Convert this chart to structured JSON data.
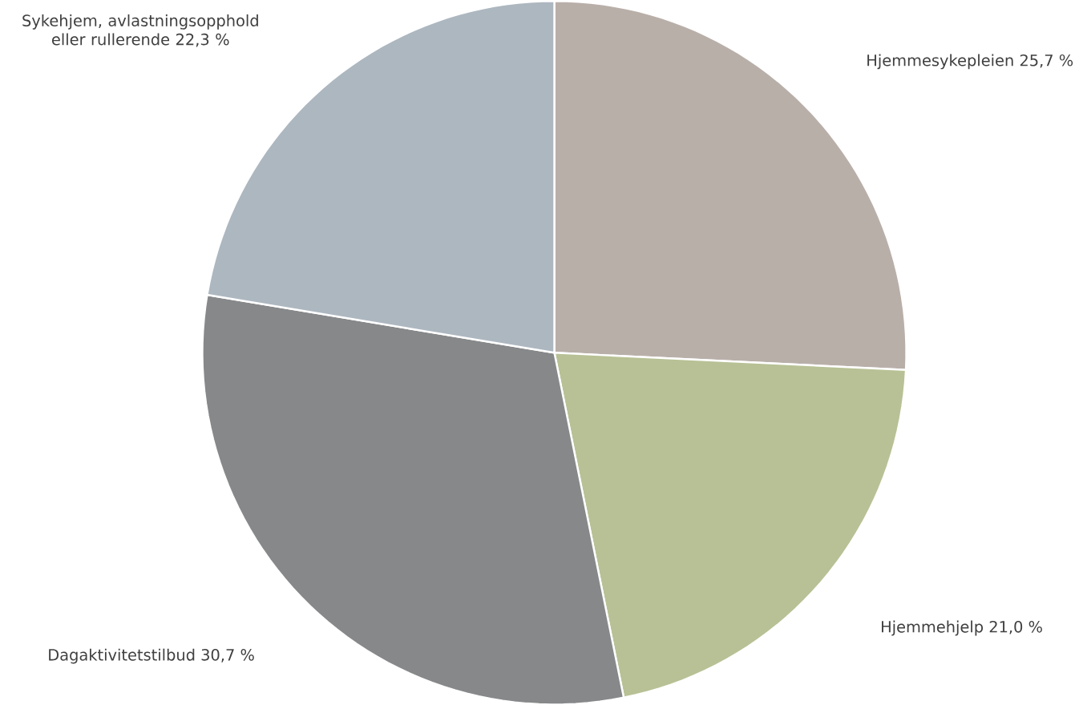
{
  "chart_data": {
    "type": "pie",
    "categories": [
      "Hjemmesykepleien",
      "Hjemmehjelp",
      "Dagaktivitetstilbud",
      "Sykehjem, avlastningsopphold eller rullerende"
    ],
    "values": [
      25.7,
      21.0,
      30.7,
      22.3
    ],
    "value_labels": [
      "25,7 %",
      "21,0 %",
      "30,7 %",
      "22,3 %"
    ],
    "colors": [
      "#b9afa9",
      "#b7c195",
      "#87888a",
      "#adb7c0"
    ]
  }
}
